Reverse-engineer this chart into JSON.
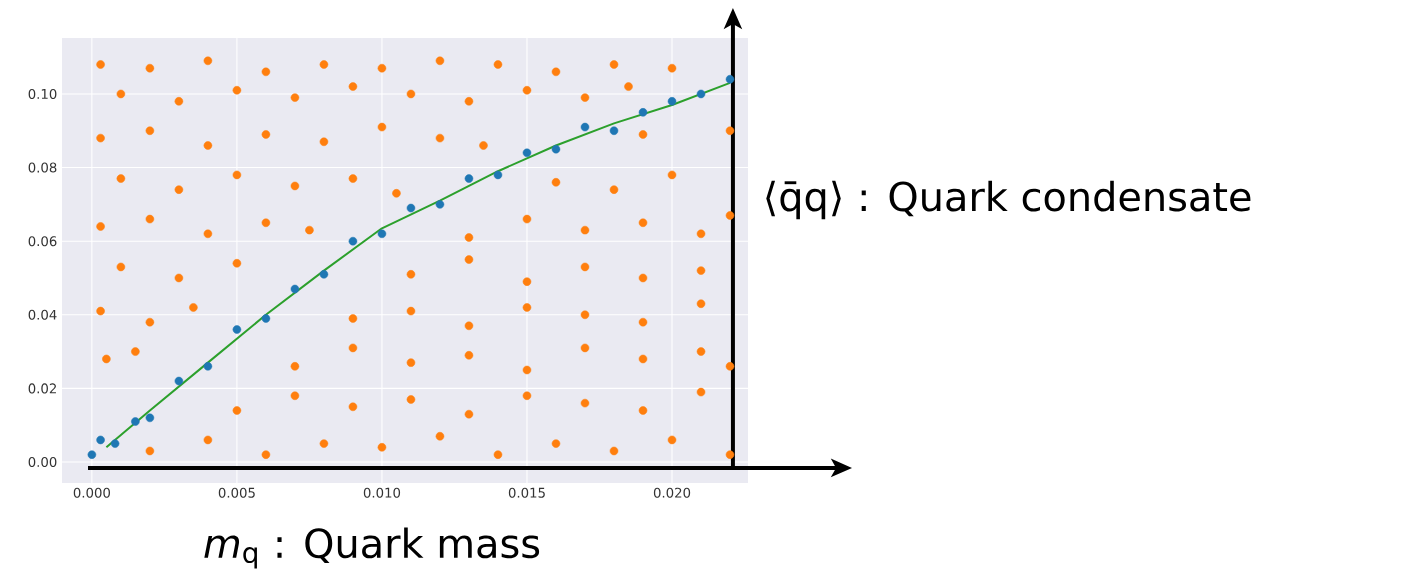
{
  "chart_data": {
    "type": "scatter",
    "xlabel": "*m*$_{q}$ : Quark mass",
    "ylabel": "⟨q̄q⟩ : Quark condensate",
    "xlim": [
      -0.00103,
      0.02262
    ],
    "ylim": [
      -0.0057,
      0.1152
    ],
    "xticks": [
      {
        "value": 0,
        "label": "0.000"
      },
      {
        "value": 0.005,
        "label": "0.005"
      },
      {
        "value": 0.01,
        "label": "0.010"
      },
      {
        "value": 0.015,
        "label": "0.015"
      },
      {
        "value": 0.02,
        "label": "0.020"
      }
    ],
    "yticks": [
      {
        "value": 0,
        "label": "0.00"
      },
      {
        "value": 0.02,
        "label": "0.02"
      },
      {
        "value": 0.04,
        "label": "0.04"
      },
      {
        "value": 0.06,
        "label": "0.06"
      },
      {
        "value": 0.08,
        "label": "0.08"
      },
      {
        "value": 0.1,
        "label": "0.10"
      }
    ],
    "grid": true,
    "marker": "circle",
    "ref_lines": [
      {
        "axis": "y",
        "value": -0.0016,
        "color": "#000000"
      },
      {
        "axis": "x",
        "value": 0.0221,
        "color": "#000000"
      }
    ],
    "series": [
      {
        "color": "#1f77b4",
        "x": [
          0,
          0.0003,
          0.0008,
          0.0015,
          0.002,
          0.003,
          0.004,
          0.005,
          0.006,
          0.007,
          0.008,
          0.009,
          0.01,
          0.011,
          0.012,
          0.013,
          0.014,
          0.015,
          0.016,
          0.017,
          0.018,
          0.019,
          0.02,
          0.021,
          0.022
        ],
        "values": [
          0.002,
          0.006,
          0.005,
          0.011,
          0.012,
          0.022,
          0.026,
          0.036,
          0.039,
          0.047,
          0.051,
          0.06,
          0.062,
          0.069,
          0.07,
          0.077,
          0.078,
          0.084,
          0.085,
          0.091,
          0.09,
          0.095,
          0.098,
          0.1,
          0.104
        ]
      },
      {
        "color": "#ff7f0e",
        "x": [
          0.002,
          0.004,
          0.006,
          0.008,
          0.01,
          0.012,
          0.014,
          0.016,
          0.018,
          0.02,
          0.022,
          0.005,
          0.007,
          0.009,
          0.011,
          0.013,
          0.015,
          0.017,
          0.019,
          0.021,
          0.0005,
          0.0015,
          0.007,
          0.009,
          0.011,
          0.013,
          0.015,
          0.017,
          0.019,
          0.021,
          0.022,
          0.0003,
          0.002,
          0.0035,
          0.009,
          0.011,
          0.013,
          0.015,
          0.017,
          0.019,
          0.021,
          0.001,
          0.003,
          0.005,
          0.011,
          0.013,
          0.015,
          0.017,
          0.019,
          0.021,
          0.0003,
          0.002,
          0.004,
          0.006,
          0.0075,
          0.013,
          0.015,
          0.017,
          0.019,
          0.021,
          0.022,
          0.001,
          0.003,
          0.005,
          0.007,
          0.009,
          0.0105,
          0.016,
          0.018,
          0.02,
          0.0003,
          0.002,
          0.004,
          0.006,
          0.008,
          0.01,
          0.012,
          0.0135,
          0.019,
          0.022,
          0.001,
          0.003,
          0.005,
          0.007,
          0.009,
          0.011,
          0.013,
          0.015,
          0.017,
          0.0185,
          0.0003,
          0.002,
          0.004,
          0.006,
          0.008,
          0.01,
          0.012,
          0.014,
          0.016,
          0.018,
          0.02
        ],
        "values": [
          0.003,
          0.006,
          0.002,
          0.005,
          0.004,
          0.007,
          0.002,
          0.005,
          0.003,
          0.006,
          0.002,
          0.014,
          0.018,
          0.015,
          0.017,
          0.013,
          0.018,
          0.016,
          0.014,
          0.019,
          0.028,
          0.03,
          0.026,
          0.031,
          0.027,
          0.029,
          0.025,
          0.031,
          0.028,
          0.03,
          0.026,
          0.041,
          0.038,
          0.042,
          0.039,
          0.041,
          0.037,
          0.042,
          0.04,
          0.038,
          0.043,
          0.053,
          0.05,
          0.054,
          0.051,
          0.055,
          0.049,
          0.053,
          0.05,
          0.052,
          0.064,
          0.066,
          0.062,
          0.065,
          0.063,
          0.061,
          0.066,
          0.063,
          0.065,
          0.062,
          0.067,
          0.077,
          0.074,
          0.078,
          0.075,
          0.077,
          0.073,
          0.076,
          0.074,
          0.078,
          0.088,
          0.09,
          0.086,
          0.089,
          0.087,
          0.091,
          0.088,
          0.086,
          0.089,
          0.09,
          0.1,
          0.098,
          0.101,
          0.099,
          0.102,
          0.1,
          0.098,
          0.101,
          0.099,
          0.102,
          0.108,
          0.107,
          0.109,
          0.106,
          0.108,
          0.107,
          0.109,
          0.108,
          0.106,
          0.108,
          0.107
        ]
      },
      {
        "type": "line",
        "marker": "none",
        "color": "#2ca02c",
        "x": [
          0.0005,
          0.002,
          0.004,
          0.006,
          0.008,
          0.01,
          0.012,
          0.014,
          0.016,
          0.018,
          0.02,
          0.022
        ],
        "values": [
          0.004,
          0.014,
          0.027,
          0.04,
          0.052,
          0.0635,
          0.071,
          0.079,
          0.086,
          0.092,
          0.097,
          0.103
        ]
      }
    ]
  }
}
